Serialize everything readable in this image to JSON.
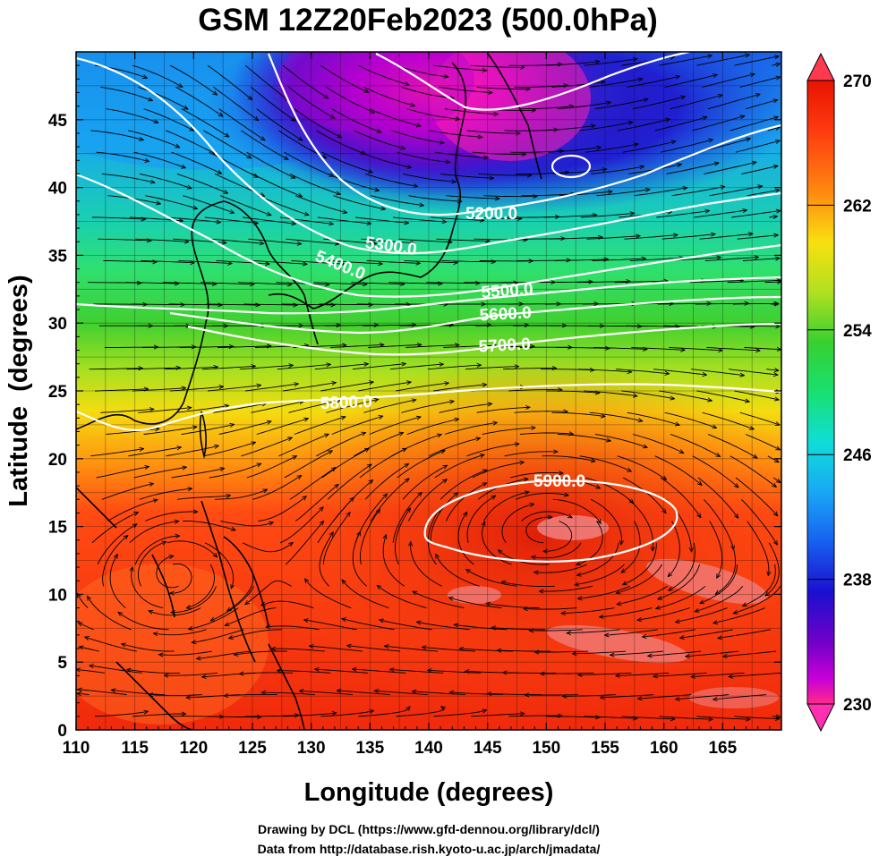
{
  "title": "GSM 12Z20Feb2023 (500.0hPa)",
  "xaxis": {
    "label": "Longitude (degrees)",
    "range": [
      110,
      170
    ],
    "ticks": [
      "110",
      "115",
      "120",
      "125",
      "130",
      "135",
      "140",
      "145",
      "150",
      "155",
      "160",
      "165"
    ]
  },
  "yaxis": {
    "label": "Latitude  (degrees)",
    "range": [
      0,
      50
    ],
    "ticks": [
      "0",
      "5",
      "10",
      "15",
      "20",
      "25",
      "30",
      "35",
      "40",
      "45"
    ]
  },
  "colorbar": {
    "min": 230,
    "max": 270,
    "labels": [
      "270",
      "262",
      "254",
      "246",
      "238",
      "230"
    ],
    "colors": [
      "#ff2a8a",
      "#d400d8",
      "#7000c8",
      "#1a10d0",
      "#1860f0",
      "#1aa8f5",
      "#10ddd8",
      "#18e070",
      "#30cf30",
      "#a6e020",
      "#f6e010",
      "#ff9a10",
      "#ff4a10",
      "#e81400"
    ]
  },
  "contours": [
    {
      "label": "5200.0"
    },
    {
      "label": "5300.0"
    },
    {
      "label": "5400.0"
    },
    {
      "label": "5500.0"
    },
    {
      "label": "5600.0"
    },
    {
      "label": "5700.0"
    },
    {
      "label": "5800.0"
    },
    {
      "label": "5900.0"
    }
  ],
  "credits": {
    "line1": "Drawing by DCL (https://www.gfd-dennou.org/library/dcl/)",
    "line2": "Data from http://database.rish.kyoto-u.ac.jp/arch/jmadata/"
  }
}
